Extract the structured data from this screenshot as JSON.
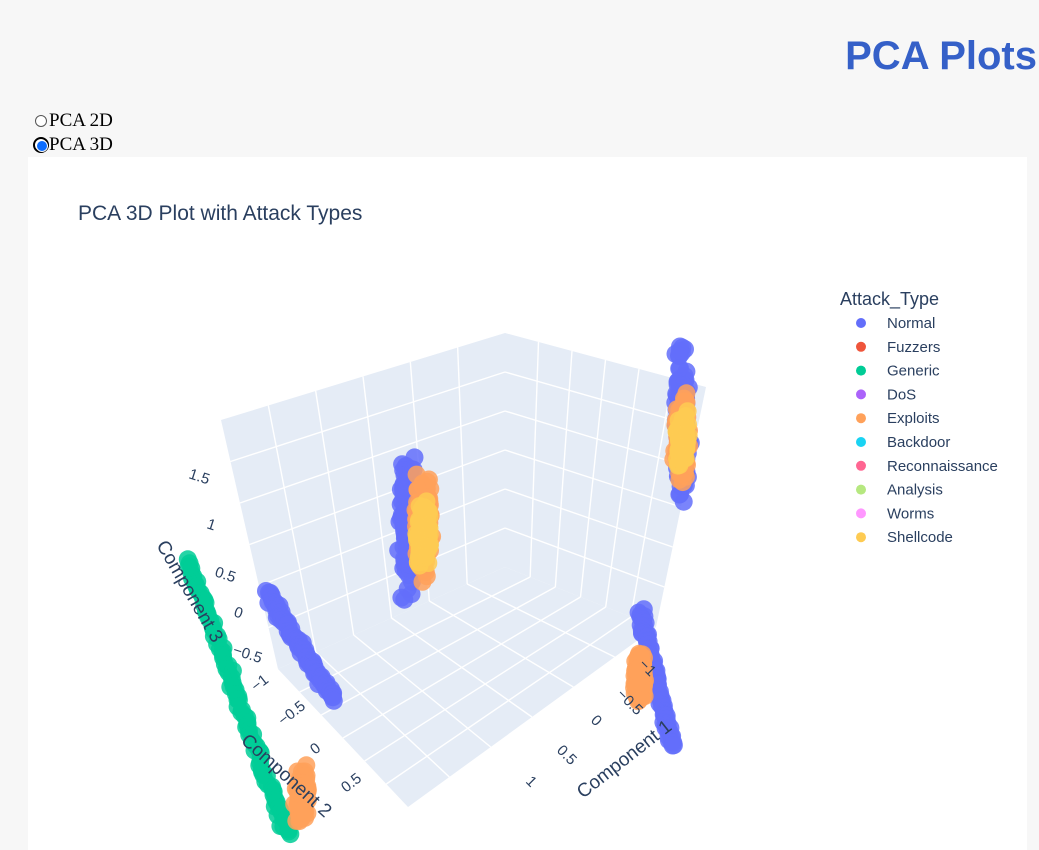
{
  "header": {
    "title": "PCA Plots"
  },
  "radio_options": [
    {
      "label": "PCA 2D",
      "selected": false
    },
    {
      "label": "PCA 3D",
      "selected": true
    }
  ],
  "chart_data": {
    "type": "scatter",
    "projection": "3d",
    "title": "PCA 3D Plot with Attack Types",
    "axes": {
      "x": {
        "label": "Component 1",
        "ticks": [
          "−1",
          "−0.5",
          "0",
          "0.5",
          "1"
        ]
      },
      "y": {
        "label": "Component 2",
        "ticks": [
          "−1",
          "−0.5",
          "0",
          "0.5"
        ]
      },
      "z": {
        "label": "Component 3",
        "ticks": [
          "−0.5",
          "0",
          "0.5",
          "1",
          "1.5"
        ]
      }
    },
    "legend": {
      "title": "Attack_Type",
      "placement": "right",
      "items": [
        {
          "name": "Normal",
          "color": "#636efa"
        },
        {
          "name": "Fuzzers",
          "color": "#ef553b"
        },
        {
          "name": "Generic",
          "color": "#00cc96"
        },
        {
          "name": "DoS",
          "color": "#ab63fa"
        },
        {
          "name": "Exploits",
          "color": "#ffa15a"
        },
        {
          "name": "Backdoor",
          "color": "#19d3f3"
        },
        {
          "name": "Reconnaissance",
          "color": "#ff6692"
        },
        {
          "name": "Analysis",
          "color": "#b6e880"
        },
        {
          "name": "Worms",
          "color": "#ff97ff"
        },
        {
          "name": "Shellcode",
          "color": "#fecb52"
        }
      ]
    },
    "clusters": [
      {
        "name": "Generic",
        "shape": "line",
        "from": [
          -1.0,
          1.0,
          1.5
        ],
        "to": [
          -0.6,
          0.8,
          -0.4
        ]
      },
      {
        "name": "Normal",
        "shape": "line",
        "from": [
          -0.8,
          0.7,
          1.1
        ],
        "to": [
          -0.5,
          0.6,
          0.3
        ]
      },
      {
        "name": "Normal",
        "shape": "blob",
        "center": [
          -0.4,
          0.2,
          1.2
        ],
        "spread": [
          0.05,
          0.05,
          0.55
        ]
      },
      {
        "name": "Exploits",
        "shape": "blob",
        "center": [
          -0.35,
          0.15,
          1.1
        ],
        "spread": [
          0.05,
          0.05,
          0.4
        ]
      },
      {
        "name": "Shellcode",
        "shape": "blob",
        "center": [
          -0.35,
          0.15,
          1.05
        ],
        "spread": [
          0.04,
          0.04,
          0.25
        ]
      },
      {
        "name": "Normal",
        "shape": "blob",
        "center": [
          0.5,
          -0.6,
          1.1
        ],
        "spread": [
          0.05,
          0.05,
          0.6
        ]
      },
      {
        "name": "Exploits",
        "shape": "blob",
        "center": [
          0.5,
          -0.6,
          1.0
        ],
        "spread": [
          0.04,
          0.04,
          0.35
        ]
      },
      {
        "name": "Shellcode",
        "shape": "blob",
        "center": [
          0.5,
          -0.6,
          1.0
        ],
        "spread": [
          0.03,
          0.03,
          0.2
        ]
      },
      {
        "name": "Normal",
        "shape": "line",
        "from": [
          0.5,
          -0.3,
          0.1
        ],
        "to": [
          0.6,
          -0.4,
          -0.8
        ]
      },
      {
        "name": "Exploits",
        "shape": "blob",
        "center": [
          0.5,
          -0.3,
          -0.3
        ],
        "spread": [
          0.03,
          0.03,
          0.2
        ]
      },
      {
        "name": "Exploits",
        "shape": "blob",
        "center": [
          -0.6,
          0.7,
          -0.2
        ],
        "spread": [
          0.04,
          0.04,
          0.2
        ]
      }
    ]
  }
}
